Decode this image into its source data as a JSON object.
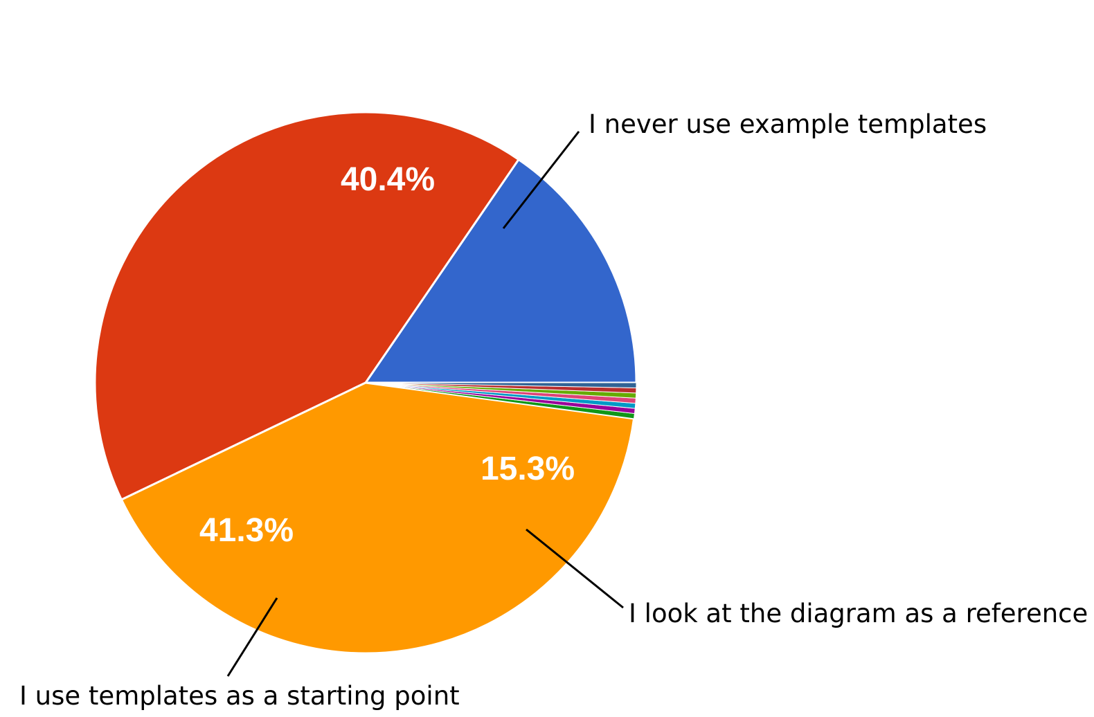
{
  "chart_data": {
    "type": "pie",
    "start_angle_deg": 0,
    "direction": "counterclockwise",
    "slices": [
      {
        "label": "I look at the diagram as a reference",
        "value": 15.3,
        "display": "15.3%",
        "color": "#3366cc"
      },
      {
        "label": "I use templates as a starting point",
        "value": 41.3,
        "display": "41.3%",
        "color": "#dc3912"
      },
      {
        "label": "I never use example templates",
        "value": 40.4,
        "display": "40.4%",
        "color": "#ff9900"
      },
      {
        "label": "",
        "value": 0.3,
        "display": "",
        "color": "#109618"
      },
      {
        "label": "",
        "value": 0.3,
        "display": "",
        "color": "#990099"
      },
      {
        "label": "",
        "value": 0.3,
        "display": "",
        "color": "#0099c6"
      },
      {
        "label": "",
        "value": 0.3,
        "display": "",
        "color": "#dd4477"
      },
      {
        "label": "",
        "value": 0.3,
        "display": "",
        "color": "#66aa00"
      },
      {
        "label": "",
        "value": 0.3,
        "display": "",
        "color": "#b82e2e"
      },
      {
        "label": "",
        "value": 0.3,
        "display": "",
        "color": "#316395"
      }
    ]
  }
}
